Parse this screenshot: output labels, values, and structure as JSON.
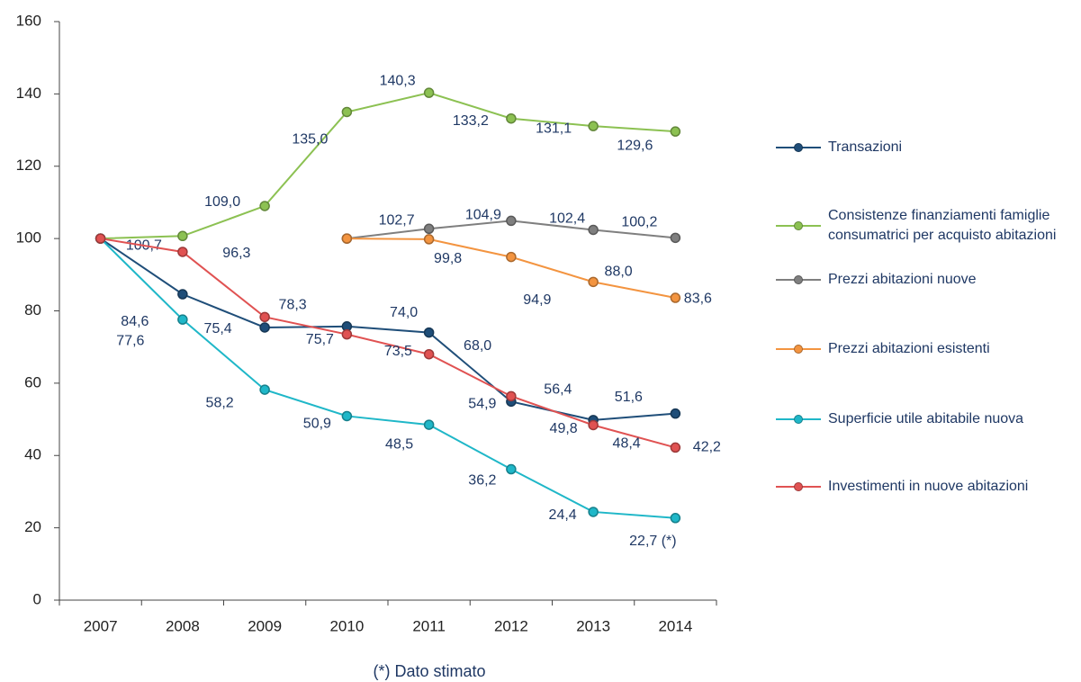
{
  "chart_data": {
    "type": "line",
    "categories": [
      "2007",
      "2008",
      "2009",
      "2010",
      "2011",
      "2012",
      "2013",
      "2014"
    ],
    "ylim": [
      0,
      160
    ],
    "yticks": [
      0,
      20,
      40,
      60,
      80,
      100,
      120,
      140,
      160
    ],
    "grid": false,
    "legend": "right",
    "series": [
      {
        "name": "Transazioni",
        "color": "#1f4e79",
        "values": [
          100,
          84.6,
          75.4,
          75.7,
          74.0,
          54.9,
          49.8,
          51.6
        ],
        "value_labels": [
          null,
          "84,6",
          "75,4",
          "75,7",
          "74,0",
          "54,9",
          "49,8",
          "51,6"
        ]
      },
      {
        "name": "Consistenze finanziamenti famiglie consumatrici per acquisto abitazioni",
        "color": "#8cc152",
        "values": [
          100,
          100.7,
          109.0,
          135.0,
          140.3,
          133.2,
          131.1,
          129.6
        ],
        "value_labels": [
          null,
          "100,7",
          "109,0",
          "135,0",
          "140,3",
          "133,2",
          "131,1",
          "129,6"
        ]
      },
      {
        "name": "Prezzi abitazioni nuove",
        "color": "#7f7f7f",
        "values": [
          null,
          null,
          null,
          100,
          102.7,
          104.9,
          102.4,
          100.2
        ],
        "value_labels": [
          null,
          null,
          null,
          null,
          "102,7",
          "104,9",
          "102,4",
          "100,2"
        ]
      },
      {
        "name": "Prezzi abitazioni esistenti",
        "color": "#f39440",
        "values": [
          null,
          null,
          null,
          100,
          99.8,
          94.9,
          88.0,
          83.6
        ],
        "value_labels": [
          null,
          null,
          null,
          null,
          "99,8",
          "94,9",
          "88,0",
          "83,6"
        ]
      },
      {
        "name": "Superficie utile abitabile nuova",
        "color": "#1fb7c8",
        "values": [
          100,
          77.6,
          58.2,
          50.9,
          48.5,
          36.2,
          24.4,
          22.7
        ],
        "value_labels": [
          null,
          "77,6",
          "58,2",
          "50,9",
          "48,5",
          "36,2",
          "24,4",
          "22,7 (*)"
        ]
      },
      {
        "name": "Investimenti in nuove abitazioni",
        "color": "#e05252",
        "values": [
          100,
          96.3,
          78.3,
          73.5,
          68.0,
          56.4,
          48.4,
          42.2
        ],
        "value_labels": [
          null,
          "96,3",
          "78,3",
          "73,5",
          "68,0",
          "56,4",
          "48,4",
          "42,2"
        ]
      }
    ],
    "footnote": "(*) Dato stimato"
  }
}
